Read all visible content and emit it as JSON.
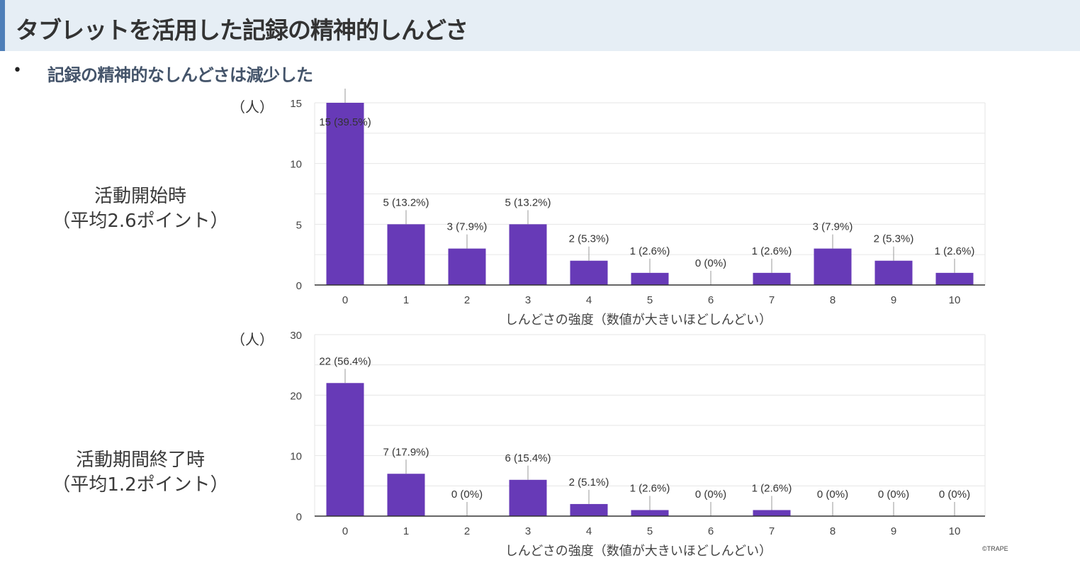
{
  "header": {
    "title": "タブレットを活用した記録の精神的しんどさ"
  },
  "bullet": {
    "symbol": "•",
    "text": "記録の精神的なしんどさは減少した"
  },
  "labels": {
    "chart1_line1": "活動開始時",
    "chart1_line2": "（平均2.6ポイント）",
    "chart2_line1": "活動期間終了時",
    "chart2_line2": "（平均1.2ポイント）"
  },
  "footer": {
    "copyright": "©TRAPE"
  },
  "colors": {
    "bar": "#673ab7",
    "grid": "#e6e6e6",
    "axis": "#333333",
    "header_bg": "#e6eef5",
    "header_accent": "#4f7fb8"
  },
  "chart_data": [
    {
      "type": "bar",
      "categories": [
        "0",
        "1",
        "2",
        "3",
        "4",
        "5",
        "6",
        "7",
        "8",
        "9",
        "10"
      ],
      "values": [
        15,
        5,
        3,
        5,
        2,
        1,
        0,
        1,
        3,
        2,
        1
      ],
      "data_labels": [
        "15 (39.5%)",
        "5 (13.2%)",
        "3 (7.9%)",
        "5 (13.2%)",
        "2 (5.3%)",
        "1 (2.6%)",
        "0 (0%)",
        "1 (2.6%)",
        "3 (7.9%)",
        "2 (5.3%)",
        "1 (2.6%)"
      ],
      "ylim": [
        0,
        15
      ],
      "yticks": [
        0,
        5,
        10,
        15
      ],
      "yunit": "（人）",
      "xlabel": "しんどさの強度（数値が大きいほどしんどい）",
      "grid": true
    },
    {
      "type": "bar",
      "categories": [
        "0",
        "1",
        "2",
        "3",
        "4",
        "5",
        "6",
        "7",
        "8",
        "9",
        "10"
      ],
      "values": [
        22,
        7,
        0,
        6,
        2,
        1,
        0,
        1,
        0,
        0,
        0
      ],
      "data_labels": [
        "22 (56.4%)",
        "7 (17.9%)",
        "0 (0%)",
        "6 (15.4%)",
        "2 (5.1%)",
        "1 (2.6%)",
        "0 (0%)",
        "1 (2.6%)",
        "0 (0%)",
        "0 (0%)",
        "0 (0%)"
      ],
      "ylim": [
        0,
        30
      ],
      "yticks": [
        0,
        10,
        20,
        30
      ],
      "yunit": "（人）",
      "xlabel": "しんどさの強度（数値が大きいほどしんどい）",
      "grid": true
    }
  ]
}
